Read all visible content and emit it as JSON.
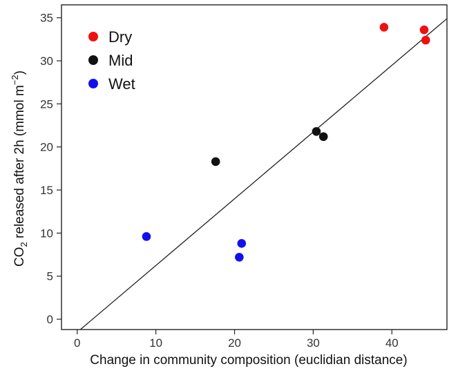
{
  "chart_data": {
    "type": "scatter",
    "xlabel": "Change in community composition (euclidian distance)",
    "ylabel": {
      "prefix": "CO",
      "subscript": "2",
      "middle": " released after 2h (mmol  m",
      "superscript": "−2",
      "suffix": ")"
    },
    "xlim": [
      -2,
      47
    ],
    "ylim": [
      -1.2,
      36.5
    ],
    "xticks": [
      0,
      10,
      20,
      30,
      40
    ],
    "yticks": [
      0,
      5,
      10,
      15,
      20,
      25,
      30,
      35
    ],
    "grid": false,
    "legend_position": "top-left",
    "series": [
      {
        "name": "Dry",
        "color": "#ee1111",
        "points": [
          [
            39.0,
            33.9
          ],
          [
            44.1,
            33.6
          ],
          [
            44.3,
            32.4
          ]
        ]
      },
      {
        "name": "Mid",
        "color": "#111111",
        "points": [
          [
            17.6,
            18.3
          ],
          [
            30.4,
            21.8
          ],
          [
            31.3,
            21.2
          ]
        ]
      },
      {
        "name": "Wet",
        "color": "#1111ee",
        "points": [
          [
            8.8,
            9.6
          ],
          [
            20.6,
            7.2
          ],
          [
            20.9,
            8.8
          ]
        ]
      }
    ],
    "fit_line": {
      "x1": 0.4,
      "y1": -1.2,
      "x2": 47.0,
      "y2": 34.9
    }
  }
}
